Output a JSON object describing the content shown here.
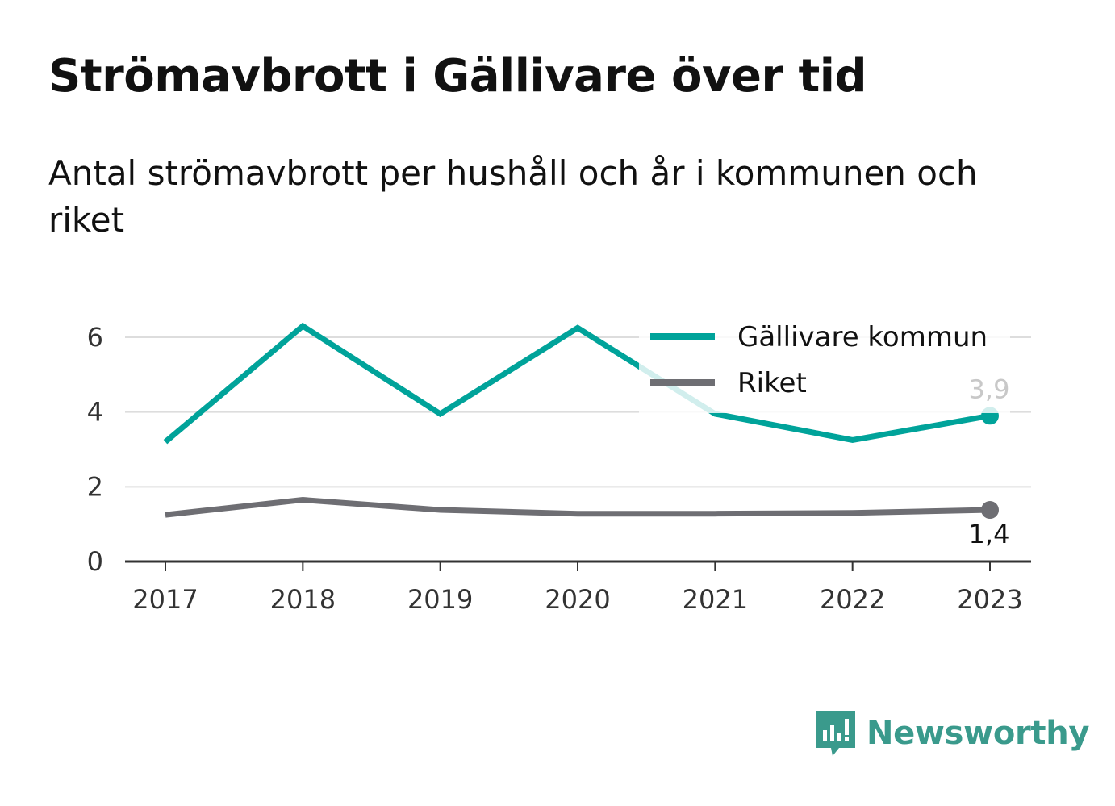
{
  "header": {
    "title": "Strömavbrott i Gällivare över tid",
    "subtitle": "Antal strömavbrott per hushåll och år i kommunen och riket"
  },
  "chart_data": {
    "type": "line",
    "x": [
      "2017",
      "2018",
      "2019",
      "2020",
      "2021",
      "2022",
      "2023"
    ],
    "ylim": [
      0,
      6.6
    ],
    "yticks": [
      "0",
      "2",
      "4",
      "6"
    ],
    "grid": true,
    "legend_position": "top-right",
    "series": [
      {
        "name": "Gällivare kommun",
        "color": "#00a39a",
        "values": [
          3.2,
          6.3,
          3.95,
          6.25,
          3.95,
          3.25,
          3.9
        ],
        "end_label": "3,9"
      },
      {
        "name": "Riket",
        "color": "#6e6e73",
        "values": [
          1.25,
          1.65,
          1.38,
          1.28,
          1.28,
          1.3,
          1.38
        ],
        "end_label": "1,4"
      }
    ]
  },
  "brand": {
    "name": "Newsworthy",
    "color": "#3a9a8c",
    "icon": "bar-chart-speech-bubble-icon"
  }
}
